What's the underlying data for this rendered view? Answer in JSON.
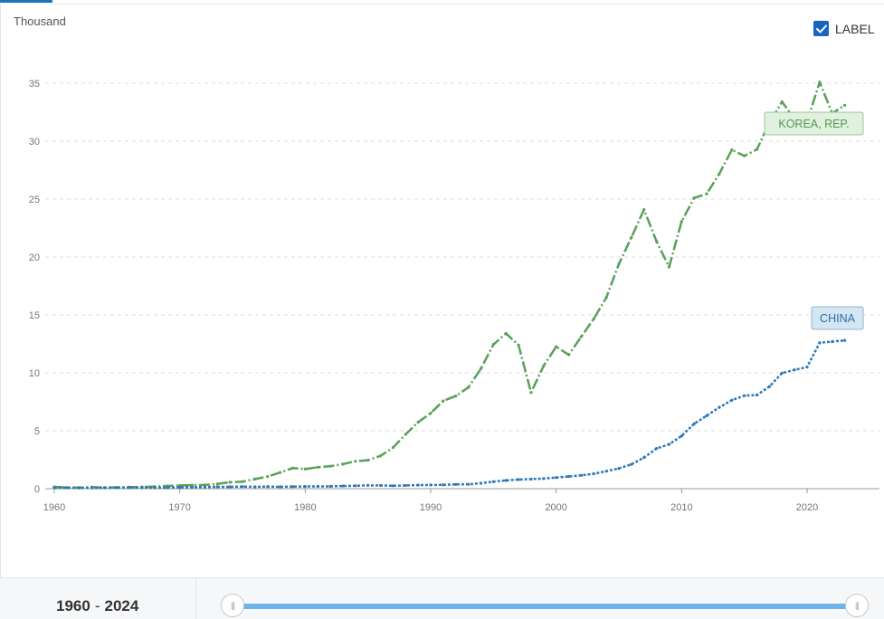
{
  "header": {
    "unit": "Thousand",
    "label_toggle": "LABEL"
  },
  "footer": {
    "range_start": "1960",
    "range_sep": "-",
    "range_end": "2024",
    "handle_glyph": "|||"
  },
  "colors": {
    "korea": "#5aa05a",
    "china": "#2e78b5",
    "grid": "#dcdcdc",
    "accent": "#1565c0"
  },
  "chart_data": {
    "type": "line",
    "ylabel": "Thousand",
    "ylim": [
      0,
      35
    ],
    "yticks": [
      0,
      5,
      10,
      15,
      20,
      25,
      30,
      35
    ],
    "xticks": [
      1960,
      1970,
      1980,
      1990,
      2000,
      2010,
      2020
    ],
    "x": [
      1960,
      1961,
      1962,
      1963,
      1964,
      1965,
      1966,
      1967,
      1968,
      1969,
      1970,
      1971,
      1972,
      1973,
      1974,
      1975,
      1976,
      1977,
      1978,
      1979,
      1980,
      1981,
      1982,
      1983,
      1984,
      1985,
      1986,
      1987,
      1988,
      1989,
      1990,
      1991,
      1992,
      1993,
      1994,
      1995,
      1996,
      1997,
      1998,
      1999,
      2000,
      2001,
      2002,
      2003,
      2004,
      2005,
      2006,
      2007,
      2008,
      2009,
      2010,
      2011,
      2012,
      2013,
      2014,
      2015,
      2016,
      2017,
      2018,
      2019,
      2020,
      2021,
      2022,
      2023
    ],
    "series": [
      {
        "name": "KOREA, REP.",
        "color": "#5aa05a",
        "values": [
          0.16,
          0.1,
          0.1,
          0.14,
          0.1,
          0.11,
          0.13,
          0.15,
          0.18,
          0.23,
          0.28,
          0.3,
          0.32,
          0.41,
          0.56,
          0.61,
          0.83,
          1.05,
          1.4,
          1.78,
          1.7,
          1.85,
          1.94,
          2.12,
          2.37,
          2.46,
          2.83,
          3.55,
          4.69,
          5.74,
          6.52,
          7.58,
          8.0,
          8.74,
          10.36,
          12.45,
          13.4,
          12.4,
          8.3,
          10.6,
          12.26,
          11.56,
          13.12,
          14.67,
          16.5,
          19.4,
          21.7,
          24.09,
          21.35,
          19.14,
          23.08,
          25.1,
          25.46,
          27.18,
          29.25,
          28.73,
          29.29,
          31.6,
          33.4,
          31.9,
          31.7,
          35.1,
          32.4,
          33.1
        ]
      },
      {
        "name": "CHINA",
        "color": "#2e78b5",
        "values": [
          0.09,
          0.08,
          0.07,
          0.07,
          0.08,
          0.1,
          0.1,
          0.09,
          0.09,
          0.09,
          0.11,
          0.12,
          0.13,
          0.16,
          0.16,
          0.18,
          0.16,
          0.18,
          0.16,
          0.18,
          0.19,
          0.2,
          0.2,
          0.23,
          0.25,
          0.29,
          0.28,
          0.25,
          0.28,
          0.31,
          0.32,
          0.33,
          0.37,
          0.38,
          0.47,
          0.61,
          0.71,
          0.79,
          0.83,
          0.87,
          0.96,
          1.05,
          1.15,
          1.29,
          1.51,
          1.75,
          2.1,
          2.69,
          3.47,
          3.83,
          4.55,
          5.61,
          6.3,
          7.02,
          7.64,
          8.03,
          8.09,
          8.82,
          9.98,
          10.26,
          10.5,
          12.6,
          12.7,
          12.8
        ]
      }
    ],
    "series_labels": [
      "KOREA, REP.",
      "CHINA"
    ]
  }
}
